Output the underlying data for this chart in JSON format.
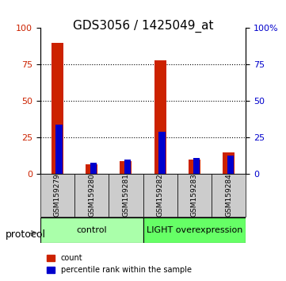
{
  "title": "GDS3056 / 1425049_at",
  "samples": [
    "GSM159279",
    "GSM159280",
    "GSM159281",
    "GSM159282",
    "GSM159283",
    "GSM159284"
  ],
  "count_values": [
    90,
    7,
    9,
    78,
    10,
    15
  ],
  "percentile_values": [
    34,
    8,
    10,
    29,
    11,
    13
  ],
  "groups": [
    {
      "label": "control",
      "samples": [
        0,
        1,
        2
      ],
      "color": "#aaffaa"
    },
    {
      "label": "LIGHT overexpression",
      "samples": [
        3,
        4,
        5
      ],
      "color": "#66ff66"
    }
  ],
  "protocol_label": "protocol",
  "ylim": [
    0,
    100
  ],
  "yticks": [
    0,
    25,
    50,
    75,
    100
  ],
  "count_color": "#cc2200",
  "percentile_color": "#0000cc",
  "bar_width": 0.35,
  "left_yaxis_color": "#cc2200",
  "right_yaxis_color": "#0000cc",
  "background_color": "#ffffff",
  "xticklabel_bg": "#cccccc",
  "legend_count_label": "count",
  "legend_percentile_label": "percentile rank within the sample"
}
